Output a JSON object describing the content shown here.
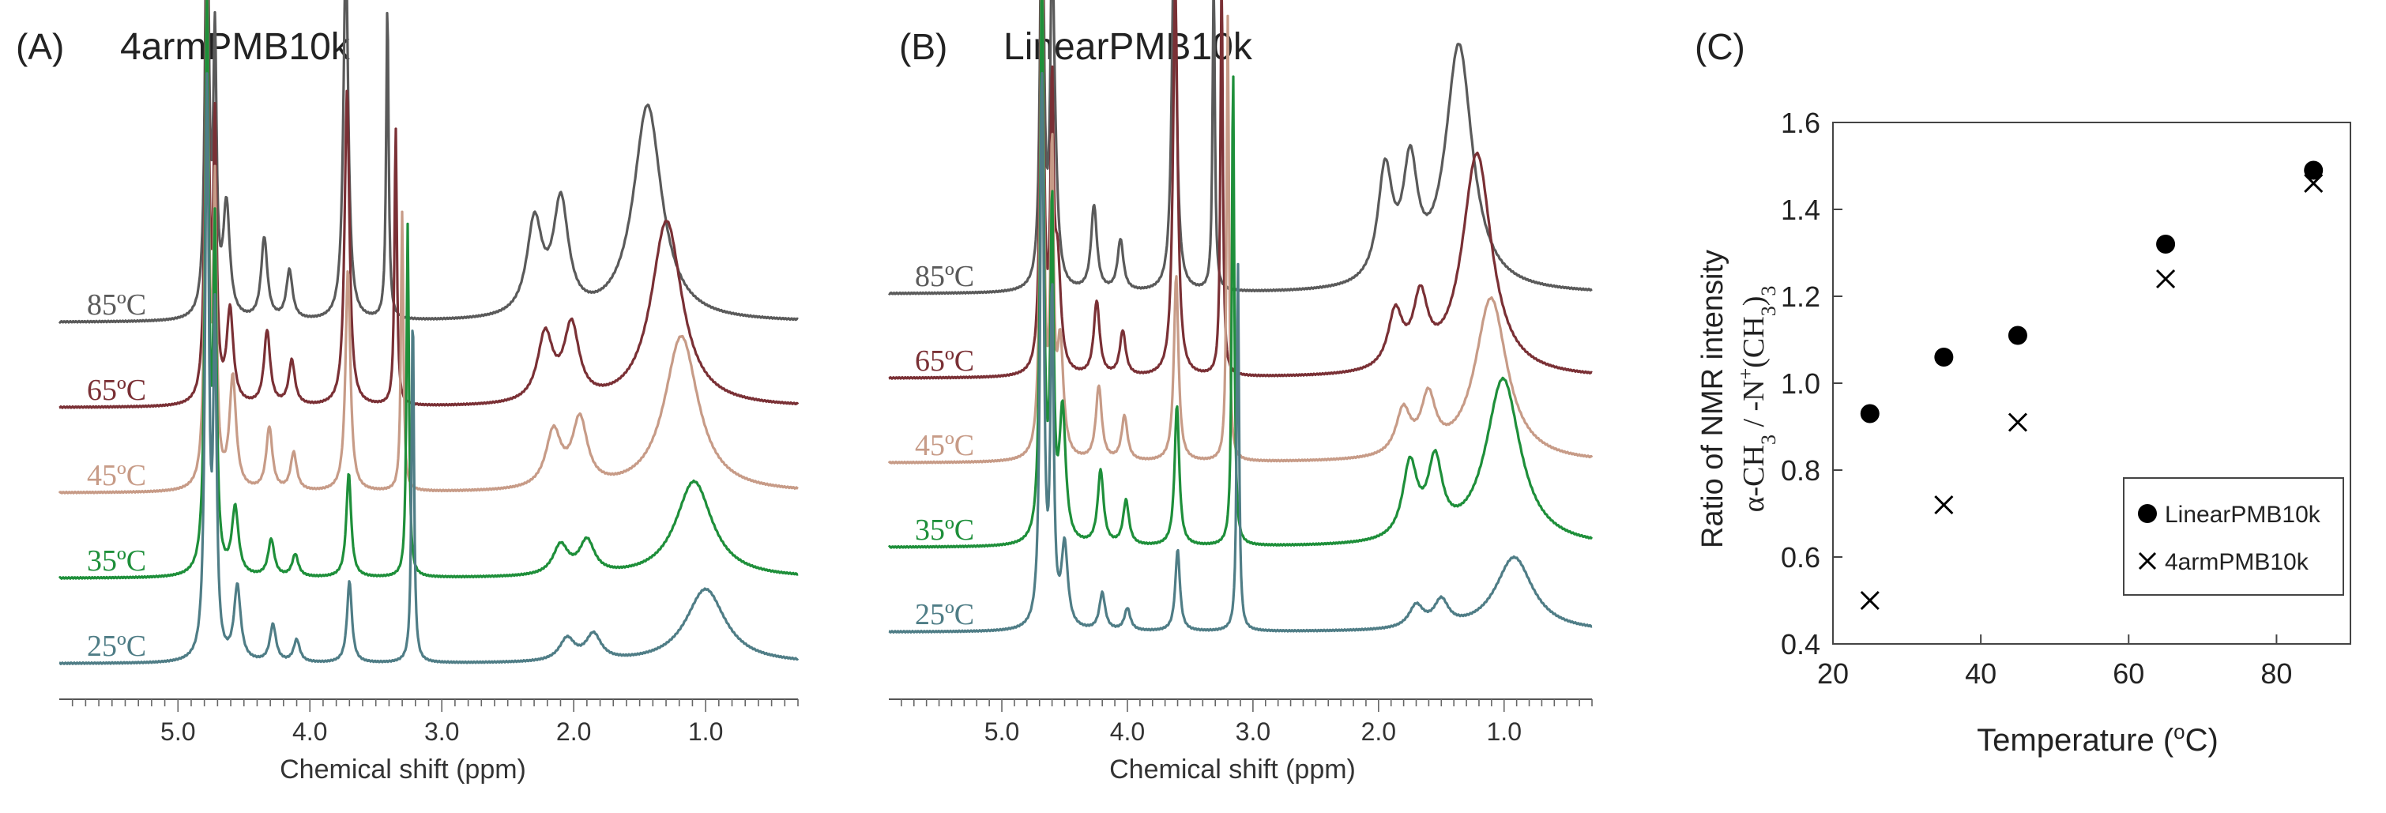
{
  "chart_data": [
    {
      "type": "line",
      "panel_label": "(A)",
      "title": "4armPMB10k",
      "xlabel": "Chemical shift (ppm)",
      "x_reversed": true,
      "xlim": [
        5.9,
        0.3
      ],
      "x_ticks": [
        5.0,
        4.0,
        3.0,
        2.0,
        1.0
      ],
      "x_tick_labels": [
        "5.0",
        "4.0",
        "3.0",
        "2.0",
        "1.0"
      ],
      "peaks_ppm": {
        "water": 4.78,
        "water_satellite": 4.72,
        "methylene_a": 4.55,
        "methylene_b": 4.28,
        "methylene_c": 4.1,
        "ethylene": 3.7,
        "N_CH3_3": 3.22,
        "mid_a": 2.05,
        "mid_b": 1.85,
        "alpha_CH3": 1.0
      },
      "series": [
        {
          "name": "85°C",
          "label": "85ºC",
          "color": "#5a5a5a",
          "baseline_offset": 4,
          "shift_ppm": 0.55,
          "intensities": {
            "water": 1.3,
            "methylene_a": 0.3,
            "methylene_b": 0.22,
            "ethylene": 1.0,
            "N_CH3_3": 0.85,
            "mid_a": 0.25,
            "mid_b": 0.3,
            "alpha_CH3": 0.58
          }
        },
        {
          "name": "65°C",
          "label": "65ºC",
          "color": "#7a3035",
          "baseline_offset": 3,
          "shift_ppm": 0.37,
          "intensities": {
            "water": 1.3,
            "methylene_a": 0.25,
            "methylene_b": 0.2,
            "ethylene": 0.85,
            "N_CH3_3": 0.75,
            "mid_a": 0.18,
            "mid_b": 0.2,
            "alpha_CH3": 0.5
          }
        },
        {
          "name": "45°C",
          "label": "45ºC",
          "color": "#c79b87",
          "baseline_offset": 2,
          "shift_ppm": 0.23,
          "intensities": {
            "water": 1.4,
            "methylene_a": 0.3,
            "methylene_b": 0.17,
            "ethylene": 0.6,
            "N_CH3_3": 0.75,
            "mid_a": 0.15,
            "mid_b": 0.18,
            "alpha_CH3": 0.42
          }
        },
        {
          "name": "35°C",
          "label": "35ºC",
          "color": "#1e8f3a",
          "baseline_offset": 1,
          "shift_ppm": 0.11,
          "intensities": {
            "water": 1.6,
            "methylene_a": 0.18,
            "methylene_b": 0.1,
            "ethylene": 0.28,
            "N_CH3_3": 0.95,
            "mid_a": 0.08,
            "mid_b": 0.09,
            "alpha_CH3": 0.26
          }
        },
        {
          "name": "25°C",
          "label": "25ºC",
          "color": "#4f7d86",
          "baseline_offset": 0,
          "shift_ppm": 0.0,
          "intensities": {
            "water": 1.6,
            "methylene_a": 0.2,
            "methylene_b": 0.1,
            "ethylene": 0.22,
            "N_CH3_3": 0.95,
            "mid_a": 0.06,
            "mid_b": 0.07,
            "alpha_CH3": 0.2
          }
        }
      ]
    },
    {
      "type": "line",
      "panel_label": "(B)",
      "title": "LinearPMB10k",
      "xlabel": "Chemical shift (ppm)",
      "x_reversed": true,
      "xlim": [
        5.9,
        0.3
      ],
      "x_ticks": [
        5.0,
        4.0,
        3.0,
        2.0,
        1.0
      ],
      "x_tick_labels": [
        "5.0",
        "4.0",
        "3.0",
        "2.0",
        "1.0"
      ],
      "peaks_ppm": {
        "water": 4.68,
        "water_satellite": 4.6,
        "methylene_a": 4.5,
        "methylene_b": 4.2,
        "methylene_c": 4.0,
        "ethylene": 3.6,
        "N_CH3_3": 3.12,
        "mid_a": 1.7,
        "mid_b": 1.5,
        "alpha_CH3": 0.92
      },
      "series": [
        {
          "name": "85°C",
          "label": "85ºC",
          "color": "#5a5a5a",
          "baseline_offset": 4,
          "shift_ppm": 0.55,
          "intensities": {
            "water": 1.3,
            "methylene_a": 0.32,
            "methylene_b": 0.23,
            "ethylene": 1.0,
            "N_CH3_3": 0.85,
            "mid_a": 0.3,
            "mid_b": 0.3,
            "alpha_CH3": 0.66
          }
        },
        {
          "name": "65°C",
          "label": "65ºC",
          "color": "#7a3035",
          "baseline_offset": 3,
          "shift_ppm": 0.37,
          "intensities": {
            "water": 1.3,
            "methylene_a": 0.28,
            "methylene_b": 0.2,
            "ethylene": 1.05,
            "N_CH3_3": 1.1,
            "mid_a": 0.15,
            "mid_b": 0.18,
            "alpha_CH3": 0.6
          }
        },
        {
          "name": "45°C",
          "label": "45ºC",
          "color": "#c79b87",
          "baseline_offset": 2,
          "shift_ppm": 0.23,
          "intensities": {
            "water": 1.45,
            "methylene_a": 0.3,
            "methylene_b": 0.2,
            "ethylene": 0.5,
            "N_CH3_3": 1.2,
            "mid_a": 0.12,
            "mid_b": 0.15,
            "alpha_CH3": 0.44
          }
        },
        {
          "name": "35°C",
          "label": "35ºC",
          "color": "#1e8f3a",
          "baseline_offset": 1,
          "shift_ppm": 0.11,
          "intensities": {
            "water": 1.6,
            "methylene_a": 0.35,
            "methylene_b": 0.2,
            "ethylene": 0.38,
            "N_CH3_3": 1.3,
            "mid_a": 0.2,
            "mid_b": 0.2,
            "alpha_CH3": 0.45
          }
        },
        {
          "name": "25°C",
          "label": "25ºC",
          "color": "#4f7d86",
          "baseline_offset": 0,
          "shift_ppm": 0.0,
          "intensities": {
            "water": 1.6,
            "methylene_a": 0.22,
            "methylene_b": 0.1,
            "ethylene": 0.22,
            "N_CH3_3": 1.0,
            "mid_a": 0.06,
            "mid_b": 0.07,
            "alpha_CH3": 0.2
          }
        }
      ]
    },
    {
      "type": "scatter",
      "panel_label": "(C)",
      "xlabel": "Temperature (ºC)",
      "xlabel_parts": [
        "Temperature (",
        "o",
        "C)"
      ],
      "ylabel_line1": "Ratio of NMR intensity",
      "ylabel_line2_parts": [
        "α-CH",
        "3",
        " / -N",
        "+",
        "(CH",
        "3",
        ")",
        "3"
      ],
      "xlim": [
        20,
        90
      ],
      "ylim": [
        0.4,
        1.6
      ],
      "x_ticks": [
        20,
        40,
        60,
        80
      ],
      "x_tick_labels": [
        "20",
        "40",
        "60",
        "80"
      ],
      "y_ticks": [
        0.4,
        0.6,
        0.8,
        1.0,
        1.2,
        1.4,
        1.6
      ],
      "y_tick_labels": [
        "0.4",
        "0.6",
        "0.8",
        "1.0",
        "1.2",
        "1.4",
        "1.6"
      ],
      "legend_position": "lower-right",
      "series": [
        {
          "name": "LinearPMB10k",
          "marker": "filled-circle",
          "x": [
            25,
            35,
            45,
            65,
            85
          ],
          "y": [
            0.93,
            1.06,
            1.11,
            1.32,
            1.49
          ]
        },
        {
          "name": "4armPMB10k",
          "marker": "cross",
          "x": [
            25,
            35,
            45,
            65,
            85
          ],
          "y": [
            0.5,
            0.72,
            0.91,
            1.24,
            1.46
          ]
        }
      ]
    }
  ]
}
